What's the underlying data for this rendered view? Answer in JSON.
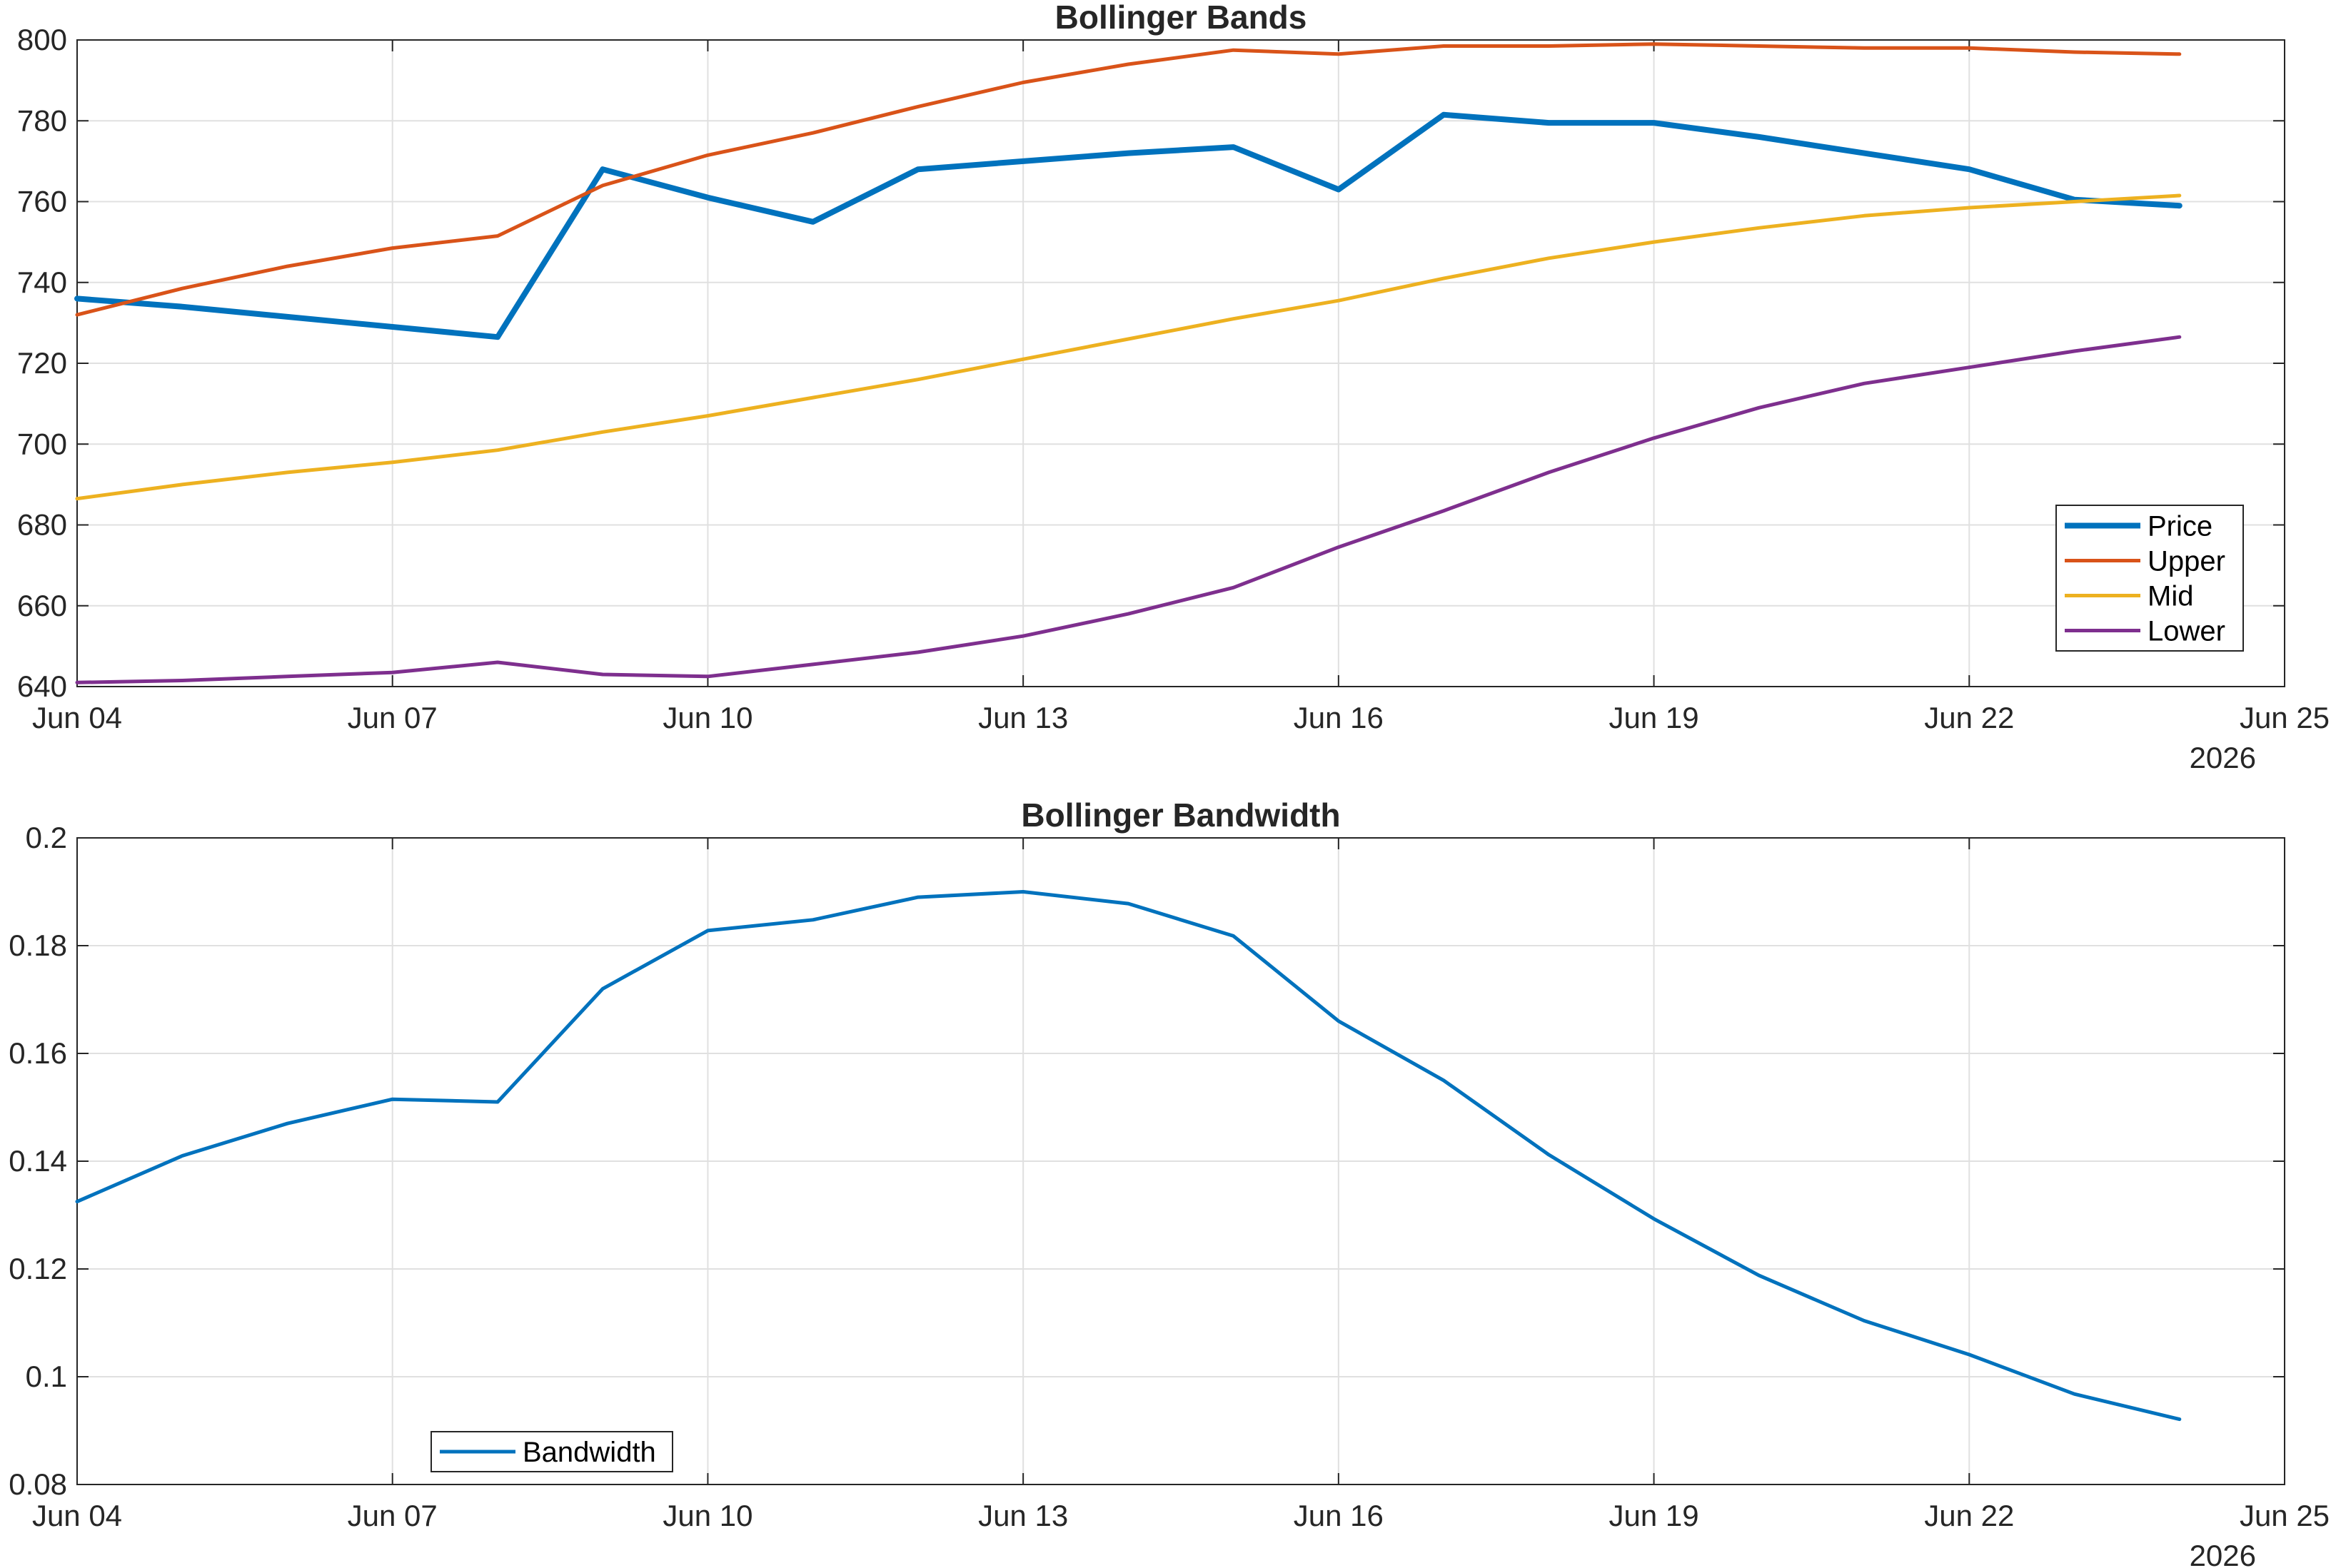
{
  "chart_data": [
    {
      "type": "line",
      "title": "Bollinger Bands",
      "xlabel": "",
      "ylabel": "",
      "x": [
        "2026-06-04",
        "2026-06-05",
        "2026-06-06",
        "2026-06-07",
        "2026-06-08",
        "2026-06-09",
        "2026-06-10",
        "2026-06-11",
        "2026-06-12",
        "2026-06-13",
        "2026-06-14",
        "2026-06-15",
        "2026-06-16",
        "2026-06-17",
        "2026-06-18",
        "2026-06-19",
        "2026-06-20",
        "2026-06-21",
        "2026-06-22",
        "2026-06-23",
        "2026-06-24"
      ],
      "xlim": [
        "2026-06-04",
        "2026-06-25"
      ],
      "x_ticks": [
        "Jun 04",
        "Jun 07",
        "Jun 10",
        "Jun 13",
        "Jun 16",
        "Jun 19",
        "Jun 22",
        "Jun 25"
      ],
      "x_year_label": "2026",
      "ylim": [
        640,
        800
      ],
      "y_ticks": [
        640,
        660,
        680,
        700,
        720,
        740,
        760,
        780,
        800
      ],
      "grid": true,
      "legend_position": "bottom-right",
      "series": [
        {
          "name": "Price",
          "color": "#0072BD",
          "width": "thick",
          "values": [
            736,
            734,
            731.5,
            729,
            726.5,
            768,
            761,
            755,
            768,
            770,
            772,
            773.5,
            763,
            781.5,
            779.5,
            779.5,
            776,
            772,
            768,
            760.5,
            759
          ]
        },
        {
          "name": "Upper",
          "color": "#D95319",
          "width": "normal",
          "values": [
            732,
            738.5,
            744,
            748.5,
            751.5,
            764,
            771.5,
            777,
            783.5,
            789.5,
            794,
            797.5,
            796.5,
            798.5,
            798.5,
            799,
            798.5,
            798,
            798,
            797,
            796.5
          ]
        },
        {
          "name": "Mid",
          "color": "#EDB120",
          "width": "normal",
          "values": [
            686.5,
            690,
            693,
            695.5,
            698.5,
            703,
            707,
            711.5,
            716,
            721,
            726,
            731,
            735.5,
            741,
            746,
            750,
            753.5,
            756.5,
            758.5,
            760,
            761.5
          ]
        },
        {
          "name": "Lower",
          "color": "#7E2F8E",
          "width": "normal",
          "values": [
            641,
            641.5,
            642.5,
            643.5,
            646,
            643,
            642.5,
            645.5,
            648.5,
            652.5,
            658,
            664.5,
            674.5,
            683.5,
            693,
            701.5,
            709,
            715,
            719,
            723,
            726.5
          ]
        }
      ]
    },
    {
      "type": "line",
      "title": "Bollinger Bandwidth",
      "xlabel": "",
      "ylabel": "",
      "x": [
        "2026-06-04",
        "2026-06-05",
        "2026-06-06",
        "2026-06-07",
        "2026-06-08",
        "2026-06-09",
        "2026-06-10",
        "2026-06-11",
        "2026-06-12",
        "2026-06-13",
        "2026-06-14",
        "2026-06-15",
        "2026-06-16",
        "2026-06-17",
        "2026-06-18",
        "2026-06-19",
        "2026-06-20",
        "2026-06-21",
        "2026-06-22",
        "2026-06-23",
        "2026-06-24"
      ],
      "xlim": [
        "2026-06-04",
        "2026-06-25"
      ],
      "x_ticks": [
        "Jun 04",
        "Jun 07",
        "Jun 10",
        "Jun 13",
        "Jun 16",
        "Jun 19",
        "Jun 22",
        "Jun 25"
      ],
      "x_year_label": "2026",
      "ylim": [
        0.08,
        0.2
      ],
      "y_ticks": [
        "0.08",
        "0.1",
        "0.12",
        "0.14",
        "0.16",
        "0.18",
        "0.2"
      ],
      "grid": true,
      "legend_position": "bottom-left",
      "series": [
        {
          "name": "Bandwidth",
          "color": "#0072BD",
          "width": "normal",
          "values": [
            0.1325,
            0.141,
            0.147,
            0.1515,
            0.151,
            0.172,
            0.1828,
            0.1848,
            0.189,
            0.19,
            0.1878,
            0.1818,
            0.166,
            0.155,
            0.1412,
            0.1293,
            0.1188,
            0.1104,
            0.1041,
            0.0968,
            0.0921
          ]
        }
      ]
    }
  ]
}
